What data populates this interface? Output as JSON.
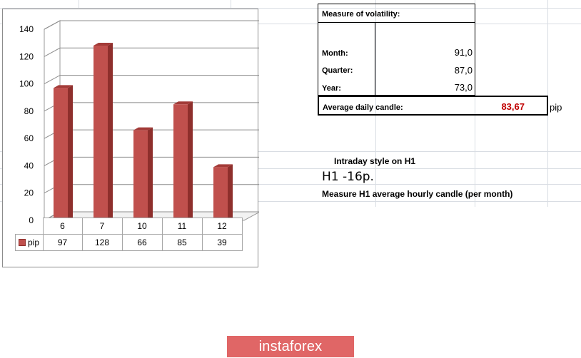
{
  "chart_data": {
    "type": "bar",
    "categories": [
      "6",
      "7",
      "10",
      "11",
      "12"
    ],
    "series": [
      {
        "name": "pip",
        "values": [
          97,
          128,
          66,
          85,
          39
        ]
      }
    ],
    "ylim": [
      0,
      140
    ],
    "yticks": [
      0,
      20,
      40,
      60,
      80,
      100,
      120,
      140
    ],
    "grid": true,
    "bar_color": "#c0504d",
    "style": "3d"
  },
  "volatility": {
    "header": "Measure of volatility:",
    "rows": [
      {
        "label": "Month:",
        "value": "91,0"
      },
      {
        "label": "Quarter:",
        "value": "87,0"
      },
      {
        "label": "Year:",
        "value": "73,0"
      }
    ],
    "avg_label": "Average daily candle:",
    "avg_value": "83,67",
    "avg_unit": "pip",
    "avg_color": "#c00000"
  },
  "intraday": {
    "title": "Intraday style on H1",
    "value": "H1 -16p.",
    "note": "Measure H1 average hourly candle (per month)"
  },
  "brand": {
    "logo_text": "instaforex",
    "color": "#e06666"
  }
}
